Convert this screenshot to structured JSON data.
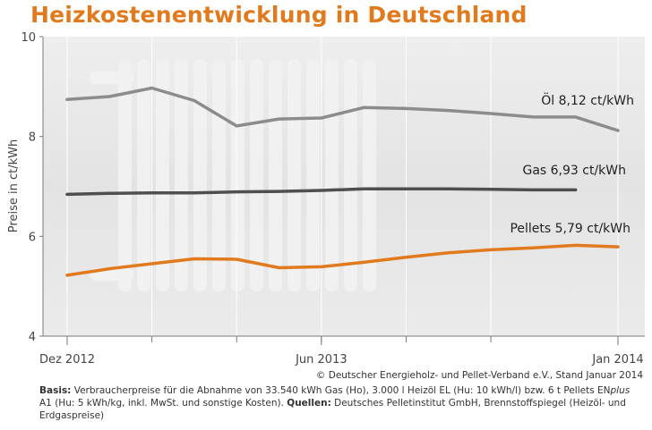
{
  "title": "Heizkostenentwicklung in Deutschland",
  "copyright": "© Deutscher Energieholz- und Pellet-Verband e.V., Stand Januar 2014",
  "footnote": {
    "basis_label": "Basis:",
    "basis_text_1": " Verbraucherpreise für die Abnahme von 33.540 kWh Gas (Ho), 3.000 l Heizöl EL (Hu: 10 kWh/l) bzw. 6 t Pellets EN",
    "basis_italic": "plus",
    "basis_text_2": " A1 (Hu: 5 kWh/kg, inkl. MwSt. und sonstige Kosten).",
    "sources_label": "Quellen:",
    "sources_text": " Deutsches Pelletinstitut GmbH, Brennstoffspiegel (Heizöl- und Erdgaspreise)"
  },
  "colors": {
    "title": "#e07a1c",
    "oil": "#8c8c8c",
    "gas": "#4f4f4f",
    "pellets": "#e07a1c",
    "plot_background": "#e6e6e6"
  },
  "chart_data": {
    "type": "line",
    "ylabel": "Preise in ct/kWh",
    "xlabel": "",
    "ylim": [
      4,
      10
    ],
    "yticks": [
      4,
      6,
      8,
      10
    ],
    "xlim": [
      0,
      13
    ],
    "xtick_labels": [
      {
        "x": 0,
        "label": "Dez 2012"
      },
      {
        "x": 6,
        "label": "Jun 2013"
      },
      {
        "x": 13,
        "label": "Jan 2014"
      }
    ],
    "x_minor_ticks": [
      0,
      2,
      4,
      6,
      8,
      10,
      13
    ],
    "grid": true,
    "series": [
      {
        "name": "Öl",
        "label": "Öl  8,12 ct/kWh",
        "color": "#8c8c8c",
        "x": [
          0,
          1,
          2,
          3,
          4,
          5,
          6,
          7,
          8,
          9,
          10,
          11,
          12,
          13
        ],
        "values": [
          8.74,
          8.8,
          8.97,
          8.72,
          8.21,
          8.35,
          8.37,
          8.58,
          8.56,
          8.52,
          8.46,
          8.39,
          8.39,
          8.12
        ]
      },
      {
        "name": "Gas",
        "label": "Gas  6,93 ct/kWh",
        "color": "#4f4f4f",
        "x": [
          0,
          1,
          2,
          3,
          4,
          5,
          6,
          7,
          8,
          9,
          10,
          11,
          12
        ],
        "values": [
          6.84,
          6.86,
          6.87,
          6.87,
          6.89,
          6.9,
          6.92,
          6.95,
          6.95,
          6.95,
          6.94,
          6.93,
          6.93
        ]
      },
      {
        "name": "Pellets",
        "label": "Pellets  5,79 ct/kWh",
        "color": "#e07a1c",
        "x": [
          0,
          1,
          2,
          3,
          4,
          5,
          6,
          7,
          8,
          9,
          10,
          11,
          12,
          13
        ],
        "values": [
          5.22,
          5.35,
          5.45,
          5.55,
          5.54,
          5.37,
          5.39,
          5.48,
          5.58,
          5.67,
          5.73,
          5.77,
          5.82,
          5.79
        ]
      }
    ]
  }
}
